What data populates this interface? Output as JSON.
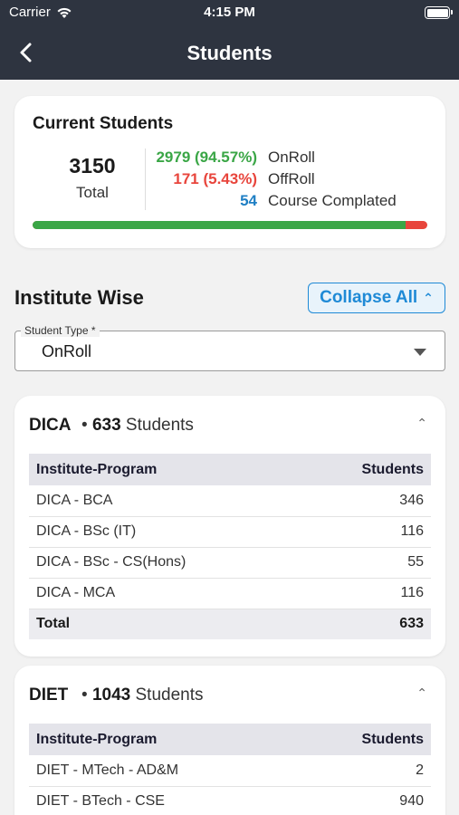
{
  "status_bar": {
    "carrier": "Carrier",
    "time": "4:15 PM"
  },
  "header": {
    "title": "Students"
  },
  "current_students": {
    "title": "Current Students",
    "total_value": "3150",
    "total_label": "Total",
    "onroll_value": "2979 (94.57%)",
    "onroll_label": "OnRoll",
    "offroll_value": "171  (5.43%)",
    "offroll_label": "OffRoll",
    "completed_value": "54",
    "completed_label": "Course Complated",
    "onroll_fraction": 0.9457,
    "colors": {
      "onroll": "#3aa646",
      "offroll": "#e8453c",
      "completed": "#1f7fc4"
    }
  },
  "institute_wise": {
    "title": "Institute Wise",
    "collapse_label": "Collapse All",
    "student_type_label": "Student Type *",
    "student_type_value": "OnRoll"
  },
  "institutes": [
    {
      "name": "DICA",
      "count": "633",
      "count_suffix": "Students",
      "col_program": "Institute-Program",
      "col_students": "Students",
      "rows": [
        {
          "program": "DICA - BCA",
          "students": "346"
        },
        {
          "program": "DICA - BSc (IT)",
          "students": "116"
        },
        {
          "program": "DICA - BSc - CS(Hons)",
          "students": "55"
        },
        {
          "program": "DICA - MCA",
          "students": "116"
        }
      ],
      "total_label": "Total",
      "total_value": "633"
    },
    {
      "name": "DIET",
      "count": "1043",
      "count_suffix": "Students",
      "col_program": "Institute-Program",
      "col_students": "Students",
      "rows": [
        {
          "program": "DIET - MTech - AD&M",
          "students": "2"
        },
        {
          "program": "DIET - BTech - CSE",
          "students": "940"
        }
      ]
    }
  ]
}
